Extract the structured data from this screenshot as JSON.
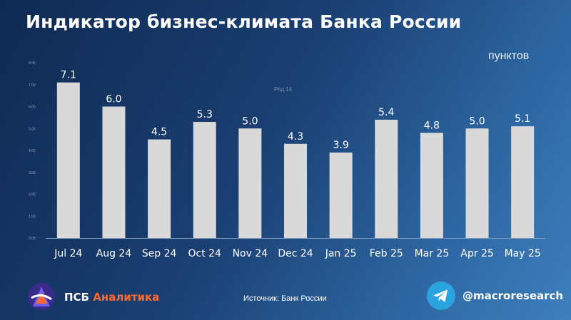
{
  "header": {
    "title": "Индикатор бизнес-климата Банка России",
    "units": "пунктов"
  },
  "footer": {
    "brand_psb": "ПСБ",
    "brand_analitika": "Аналитика",
    "source": "Источник: Банк России",
    "handle": "@macroresearch",
    "logo_icon": "psb-analytics-logo-icon",
    "telegram_icon": "telegram-icon"
  },
  "colors": {
    "bar": "#d9d9d9",
    "text": "#ffffff",
    "accent": "#ff6a2a",
    "telegram": "#2aa3df"
  },
  "chart_data": {
    "type": "bar",
    "categories": [
      "Jul 24",
      "Aug 24",
      "Sep 24",
      "Oct 24",
      "Nov 24",
      "Dec 24",
      "Jan 25",
      "Feb 25",
      "Mar 25",
      "Apr 25",
      "May 25"
    ],
    "values": [
      7.1,
      6.0,
      4.5,
      5.3,
      5.0,
      4.3,
      3.9,
      5.4,
      4.8,
      5.0,
      5.1
    ],
    "data_labels": [
      "7.1",
      "6.0",
      "4.5",
      "5.3",
      "5.0",
      "4.3",
      "3.9",
      "5.4",
      "4.8",
      "5.0",
      "5.1"
    ],
    "y_ticks": [
      "0.00",
      "1.00",
      "2.00",
      "3.00",
      "4.00",
      "5.00",
      "6.00",
      "7.00",
      "8.00"
    ],
    "ylim": [
      0,
      8
    ],
    "faint_annotation": "Ряд 14",
    "grid": false,
    "legend": "none"
  }
}
